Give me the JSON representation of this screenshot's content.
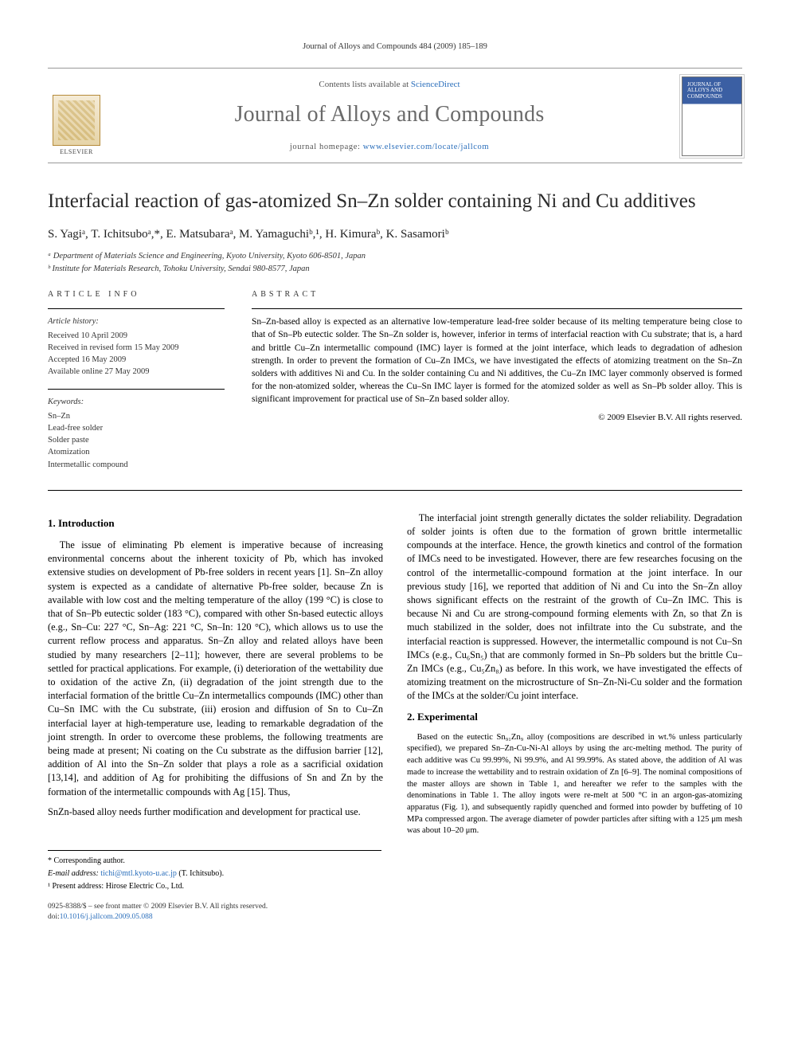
{
  "running_head": "Journal of Alloys and Compounds 484 (2009) 185–189",
  "masthead": {
    "contents_prefix": "Contents lists available at ",
    "contents_link": "ScienceDirect",
    "journal": "Journal of Alloys and Compounds",
    "homepage_prefix": "journal homepage: ",
    "homepage_url": "www.elsevier.com/locate/jallcom",
    "publisher_word": "ELSEVIER",
    "cover_caption": "JOURNAL OF ALLOYS AND COMPOUNDS"
  },
  "title": "Interfacial reaction of gas-atomized Sn–Zn solder containing Ni and Cu additives",
  "authors_line": "S. Yagiᵃ, T. Ichitsuboᵃ,*, E. Matsubaraᵃ, M. Yamaguchiᵇ,¹, H. Kimuraᵇ, K. Sasamoriᵇ",
  "affiliations": {
    "a": "ᵃ Department of Materials Science and Engineering, Kyoto University, Kyoto 606-8501, Japan",
    "b": "ᵇ Institute for Materials Research, Tohoku University, Sendai 980-8577, Japan"
  },
  "headings": {
    "article_info": "article info",
    "abstract": "abstract",
    "intro": "1. Introduction",
    "experimental": "2. Experimental"
  },
  "history": {
    "head": "Article history:",
    "received": "Received 10 April 2009",
    "revised": "Received in revised form 15 May 2009",
    "accepted": "Accepted 16 May 2009",
    "online": "Available online 27 May 2009"
  },
  "keywords": {
    "head": "Keywords:",
    "items": [
      "Sn–Zn",
      "Lead-free solder",
      "Solder paste",
      "Atomization",
      "Intermetallic compound"
    ]
  },
  "abstract": "Sn–Zn-based alloy is expected as an alternative low-temperature lead-free solder because of its melting temperature being close to that of Sn–Pb eutectic solder. The Sn–Zn solder is, however, inferior in terms of interfacial reaction with Cu substrate; that is, a hard and brittle Cu–Zn intermetallic compound (IMC) layer is formed at the joint interface, which leads to degradation of adhesion strength. In order to prevent the formation of Cu–Zn IMCs, we have investigated the effects of atomizing treatment on the Sn–Zn solders with additives Ni and Cu. In the solder containing Cu and Ni additives, the Cu–Zn IMC layer commonly observed is formed for the non-atomized solder, whereas the Cu–Sn IMC layer is formed for the atomized solder as well as Sn–Pb solder alloy. This is significant improvement for practical use of Sn–Zn based solder alloy.",
  "copyright": "© 2009 Elsevier B.V. All rights reserved.",
  "intro_p1": "The issue of eliminating Pb element is imperative because of increasing environmental concerns about the inherent toxicity of Pb, which has invoked extensive studies on development of Pb-free solders in recent years [1]. Sn–Zn alloy system is expected as a candidate of alternative Pb-free solder, because Zn is available with low cost and the melting temperature of the alloy (199 °C) is close to that of Sn–Pb eutectic solder (183 °C), compared with other Sn-based eutectic alloys (e.g., Sn–Cu: 227 °C, Sn–Ag: 221 °C, Sn–In: 120 °C), which allows us to use the current reflow process and apparatus. Sn–Zn alloy and related alloys have been studied by many researchers [2–11]; however, there are several problems to be settled for practical applications. For example, (i) deterioration of the wettability due to oxidation of the active Zn, (ii) degradation of the joint strength due to the interfacial formation of the brittle Cu–Zn intermetallics compounds (IMC) other than Cu–Sn IMC with the Cu substrate, (iii) erosion and diffusion of Sn to Cu–Zn interfacial layer at high-temperature use, leading to remarkable degradation of the joint strength. In order to overcome these problems, the following treatments are being made at present; Ni coating on the Cu substrate as the diffusion barrier [12], addition of Al into the Sn–Zn solder that plays a role as a sacrificial oxidation [13,14], and addition of Ag for prohibiting the diffusions of Sn and Zn by the formation of the intermetallic compounds with Ag [15]. Thus,",
  "intro_p1b": "SnZn-based alloy needs further modification and development for practical use.",
  "intro_p2": "The interfacial joint strength generally dictates the solder reliability. Degradation of solder joints is often due to the formation of grown brittle intermetallic compounds at the interface. Hence, the growth kinetics and control of the formation of IMCs need to be investigated. However, there are few researches focusing on the control of the intermetallic-compound formation at the joint interface. In our previous study [16], we reported that addition of Ni and Cu into the Sn–Zn alloy shows significant effects on the restraint of the growth of Cu–Zn IMC. This is because Ni and Cu are strong-compound forming elements with Zn, so that Zn is much stabilized in the solder, does not infiltrate into the Cu substrate, and the interfacial reaction is suppressed. However, the intermetallic compound is not Cu–Sn IMCs (e.g., Cu₆Sn₅) that are commonly formed in Sn–Pb solders but the brittle Cu–Zn IMCs (e.g., Cu₅Zn₈) as before. In this work, we have investigated the effects of atomizing treatment on the microstructure of Sn–Zn-Ni-Cu solder and the formation of the IMCs at the solder/Cu joint interface.",
  "experimental_p": "Based on the eutectic Sn₉₁Zn₉ alloy (compositions are described in wt.% unless particularly specified), we prepared Sn–Zn-Cu-Ni-Al alloys by using the arc-melting method. The purity of each additive was Cu 99.99%, Ni 99.9%, and Al 99.99%. As stated above, the addition of Al was made to increase the wettability and to restrain oxidation of Zn [6–9]. The nominal compositions of the master alloys are shown in Table 1, and hereafter we refer to the samples with the denominations in Table 1. The alloy ingots were re-melt at 500 °C in an argon-gas-atomizing apparatus (Fig. 1), and subsequently rapidly quenched and formed into powder by buffeting of 10 MPa compressed argon. The average diameter of powder particles after sifting with a 125 μm mesh was about 10–20 μm.",
  "footnotes": {
    "corr": "* Corresponding author.",
    "email_label": "E-mail address: ",
    "email": "tichi@mtl.kyoto-u.ac.jp",
    "email_who": " (T. Ichitsubo).",
    "present": "¹ Present address: Hirose Electric Co., Ltd."
  },
  "footer": {
    "left1": "0925-8388/$ – see front matter © 2009 Elsevier B.V. All rights reserved.",
    "left2_prefix": "doi:",
    "doi": "10.1016/j.jallcom.2009.05.088"
  },
  "colors": {
    "link": "#2a6ebb",
    "text": "#000000",
    "grey": "#6a6a6a"
  }
}
